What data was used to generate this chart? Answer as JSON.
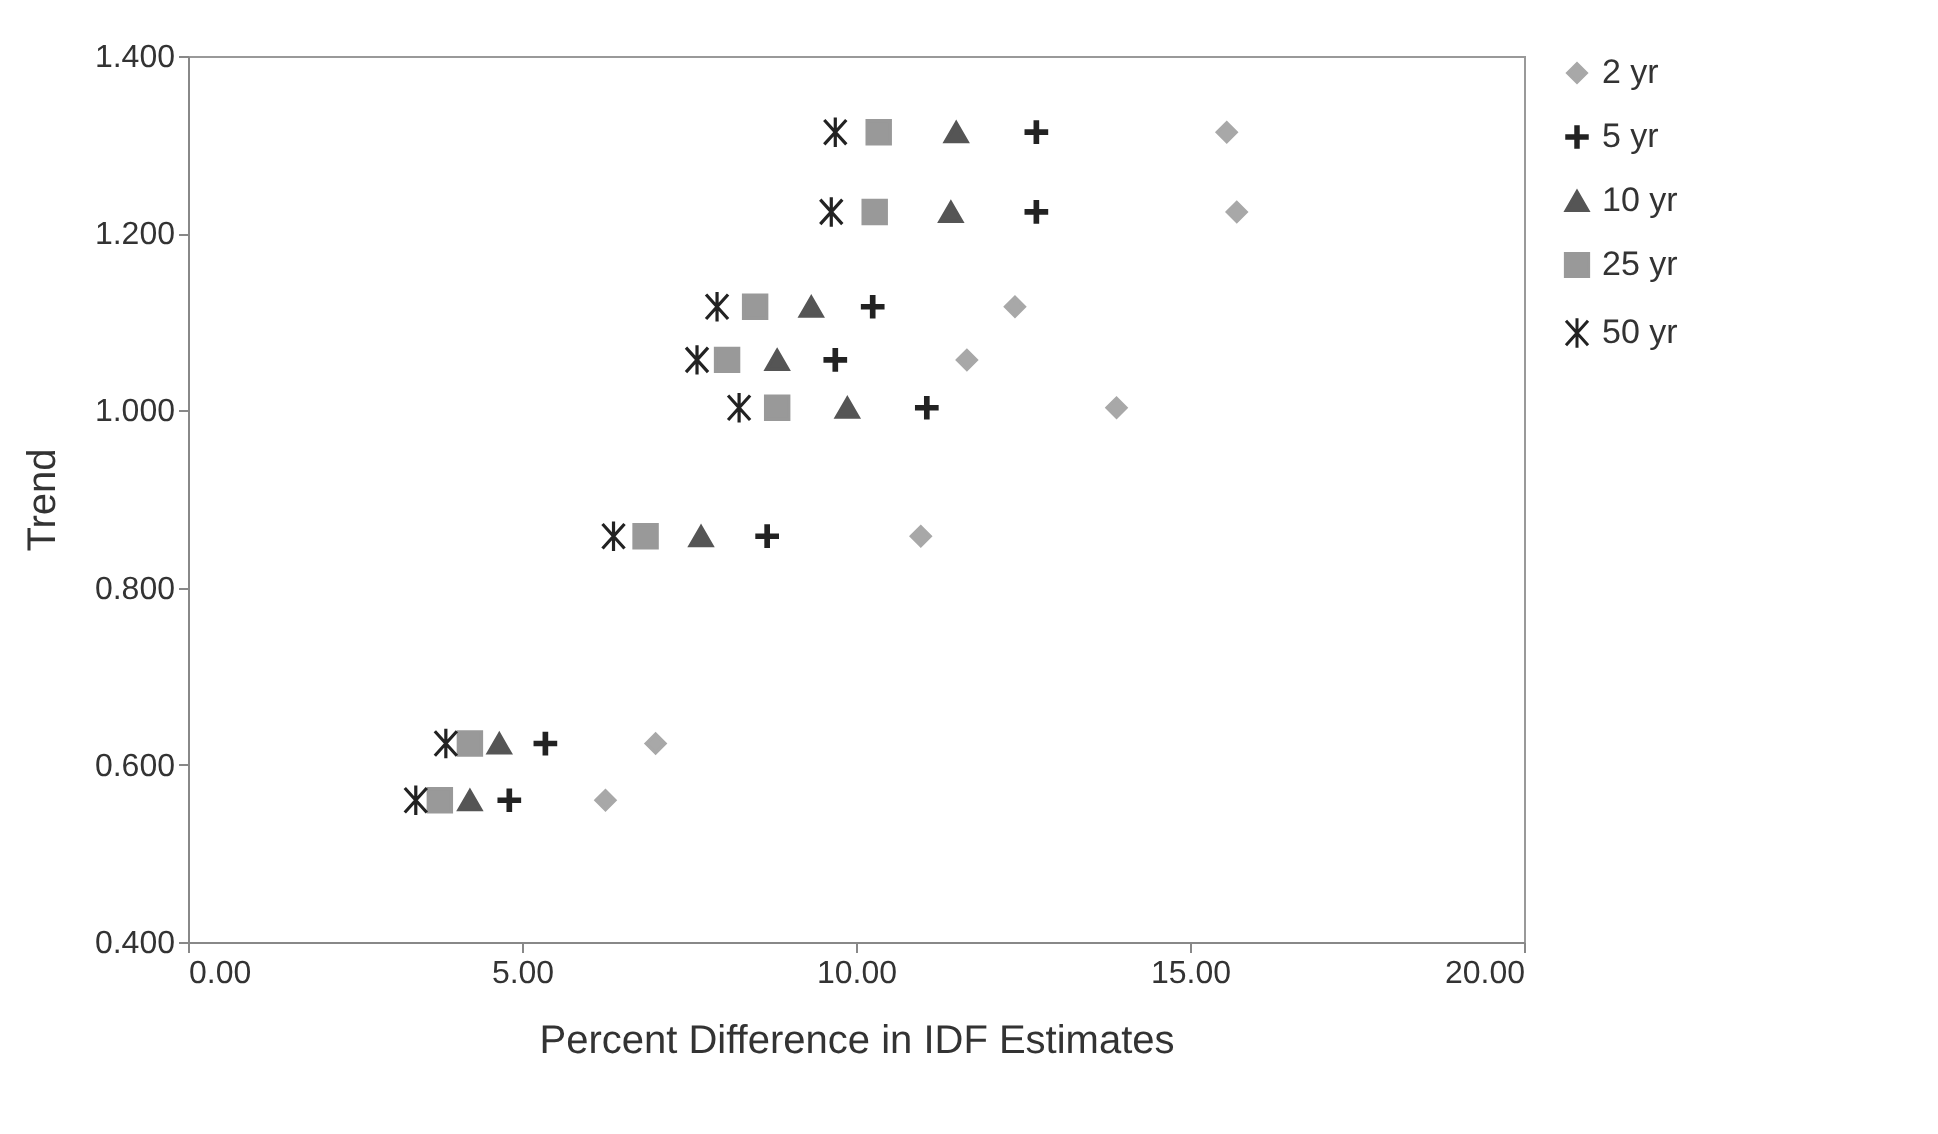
{
  "chart_data": {
    "type": "scatter",
    "xlabel": "Percent Difference in IDF Estimates",
    "ylabel": "Trend",
    "xlim": [
      0,
      20
    ],
    "xticks": [
      {
        "value": 0,
        "label": "0.00"
      },
      {
        "value": 5,
        "label": "5.00"
      },
      {
        "value": 10,
        "label": "10.00"
      },
      {
        "value": 15,
        "label": "15.00"
      },
      {
        "value": 20,
        "label": "20.00"
      }
    ],
    "ylim": [
      0.4,
      1.4
    ],
    "yticks": [
      {
        "value": 0.4,
        "label": "0.400"
      },
      {
        "value": 0.6,
        "label": "0.600"
      },
      {
        "value": 0.8,
        "label": "0.800"
      },
      {
        "value": 1.0,
        "label": "1.000"
      },
      {
        "value": 1.2,
        "label": "1.200"
      },
      {
        "value": 1.4,
        "label": "1.400"
      }
    ],
    "grid": false,
    "legend": "right",
    "series": [
      {
        "name": "2 yr",
        "color": "#a8a8a8",
        "marker": "diamond",
        "x": [
          15.55,
          15.7,
          12.38,
          11.66,
          13.9,
          10.97,
          7.0,
          6.25
        ],
        "values": [
          1.314,
          1.224,
          1.117,
          1.057,
          1.003,
          0.858,
          0.624,
          0.56
        ]
      },
      {
        "name": "5 yr",
        "color": "#222222",
        "marker": "cross",
        "x": [
          12.7,
          12.7,
          10.25,
          9.69,
          11.06,
          8.67,
          5.35,
          4.81
        ],
        "values": [
          1.314,
          1.224,
          1.117,
          1.057,
          1.003,
          0.858,
          0.624,
          0.56
        ]
      },
      {
        "name": "10 yr",
        "color": "#555555",
        "marker": "triangle",
        "x": [
          11.5,
          11.42,
          9.33,
          8.82,
          9.87,
          7.68,
          4.66,
          4.22
        ],
        "values": [
          1.314,
          1.224,
          1.117,
          1.057,
          1.003,
          0.858,
          0.624,
          0.56
        ]
      },
      {
        "name": "25 yr",
        "color": "#999999",
        "marker": "square",
        "x": [
          10.34,
          10.28,
          8.49,
          8.07,
          8.82,
          6.85,
          4.22,
          3.77
        ],
        "values": [
          1.314,
          1.224,
          1.117,
          1.057,
          1.003,
          0.858,
          0.624,
          0.56
        ]
      },
      {
        "name": "50 yr",
        "color": "#222222",
        "x": [
          9.69,
          9.63,
          7.92,
          7.62,
          8.25,
          6.37,
          3.86,
          3.41
        ],
        "values": [
          1.314,
          1.224,
          1.117,
          1.057,
          1.003,
          0.858,
          0.624,
          0.56
        ]
      }
    ]
  }
}
